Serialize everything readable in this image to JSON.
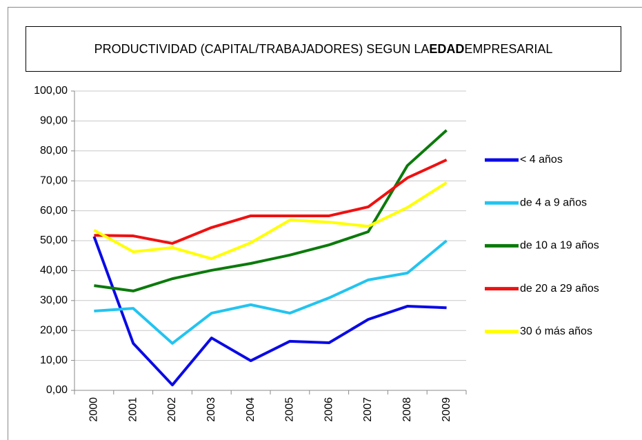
{
  "chart_data": {
    "type": "line",
    "title_parts": [
      "PRODUCTIVIDAD (CAPITAL/TRABAJADORES) SEGUN LA",
      "EDAD",
      "EMPRESARIAL"
    ],
    "categories": [
      "2000",
      "2001",
      "2002",
      "2003",
      "2004",
      "2005",
      "2006",
      "2007",
      "2008",
      "2009"
    ],
    "series": [
      {
        "name": "< 4 años",
        "color": "#0a0ae6",
        "values": [
          51.4,
          15.7,
          1.8,
          17.5,
          9.9,
          16.4,
          15.9,
          23.7,
          28.1,
          27.6
        ]
      },
      {
        "name": "de 4 a 9 años",
        "color": "#22c4f0",
        "values": [
          26.5,
          27.4,
          15.7,
          25.8,
          28.6,
          25.8,
          30.9,
          36.9,
          39.2,
          50.0
        ]
      },
      {
        "name": "de 10 a 19 años",
        "color": "#0b7a0b",
        "values": [
          35.0,
          33.2,
          37.3,
          40.1,
          42.4,
          45.2,
          48.6,
          53.0,
          75.1,
          86.9
        ]
      },
      {
        "name": "de 20 a 29 años",
        "color": "#f01010",
        "values": [
          51.8,
          51.6,
          49.1,
          54.4,
          58.3,
          58.3,
          58.3,
          61.3,
          71.0,
          77.0
        ]
      },
      {
        "name": "30 ó más años",
        "color": "#ffff00",
        "values": [
          53.5,
          46.3,
          47.7,
          44.0,
          49.3,
          56.9,
          56.2,
          54.8,
          61.1,
          69.4
        ]
      }
    ],
    "ylim": [
      0,
      100
    ],
    "yticks": [
      {
        "value": 0,
        "label": "0,00"
      },
      {
        "value": 10,
        "label": "10,00"
      },
      {
        "value": 20,
        "label": "20,00"
      },
      {
        "value": 30,
        "label": "30,00"
      },
      {
        "value": 40,
        "label": "40,00"
      },
      {
        "value": 50,
        "label": "50,00"
      },
      {
        "value": 60,
        "label": "60,00"
      },
      {
        "value": 70,
        "label": "70,00"
      },
      {
        "value": 80,
        "label": "80,00"
      },
      {
        "value": 90,
        "label": "90,00"
      },
      {
        "value": 100,
        "label": "100,00"
      }
    ],
    "grid": true,
    "legend": "right"
  }
}
